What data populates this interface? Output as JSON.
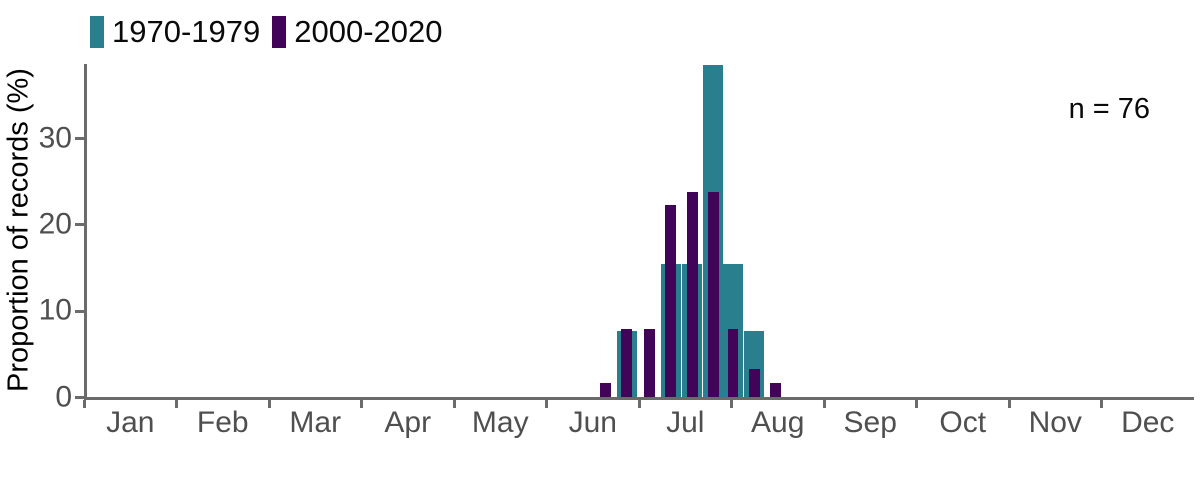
{
  "chart_data": {
    "type": "bar",
    "title": "",
    "xlabel": "",
    "ylabel": "Proportion of records (%)",
    "annotation": "n = 76",
    "n_records": 76,
    "ylim": [
      0,
      38.7
    ],
    "yticks": [
      0,
      10,
      20,
      30
    ],
    "x_axis_months": [
      "Jan",
      "Feb",
      "Mar",
      "Apr",
      "May",
      "Jun",
      "Jul",
      "Aug",
      "Sep",
      "Oct",
      "Nov",
      "Dec"
    ],
    "grid": false,
    "legend_position": "top-left",
    "bins": [
      {
        "label": "Jun 20",
        "month": "Jun",
        "day": 20
      },
      {
        "label": "Jun 27",
        "month": "Jun",
        "day": 27
      },
      {
        "label": "Jul 4",
        "month": "Jul",
        "day": 4
      },
      {
        "label": "Jul 11",
        "month": "Jul",
        "day": 11
      },
      {
        "label": "Jul 18",
        "month": "Jul",
        "day": 18
      },
      {
        "label": "Jul 25",
        "month": "Jul",
        "day": 25
      },
      {
        "label": "Aug 1",
        "month": "Aug",
        "day": 1
      },
      {
        "label": "Aug 8",
        "month": "Aug",
        "day": 8
      },
      {
        "label": "Aug 15",
        "month": "Aug",
        "day": 15
      }
    ],
    "series": [
      {
        "name": "1970-1979",
        "color": "#2a7f8e",
        "bar_width_days": 6.6,
        "values": [
          0,
          7.7,
          0,
          15.4,
          15.4,
          38.5,
          15.4,
          7.7,
          0
        ]
      },
      {
        "name": "2000-2020",
        "color": "#420458",
        "bar_width_days": 3.6,
        "values": [
          1.6,
          7.9,
          7.9,
          22.2,
          23.8,
          23.8,
          7.9,
          3.2,
          1.6
        ]
      }
    ],
    "colors": {
      "axis_line": "#6b6b6b",
      "tick_label": "#4f4f4f",
      "text": "#000000"
    }
  }
}
